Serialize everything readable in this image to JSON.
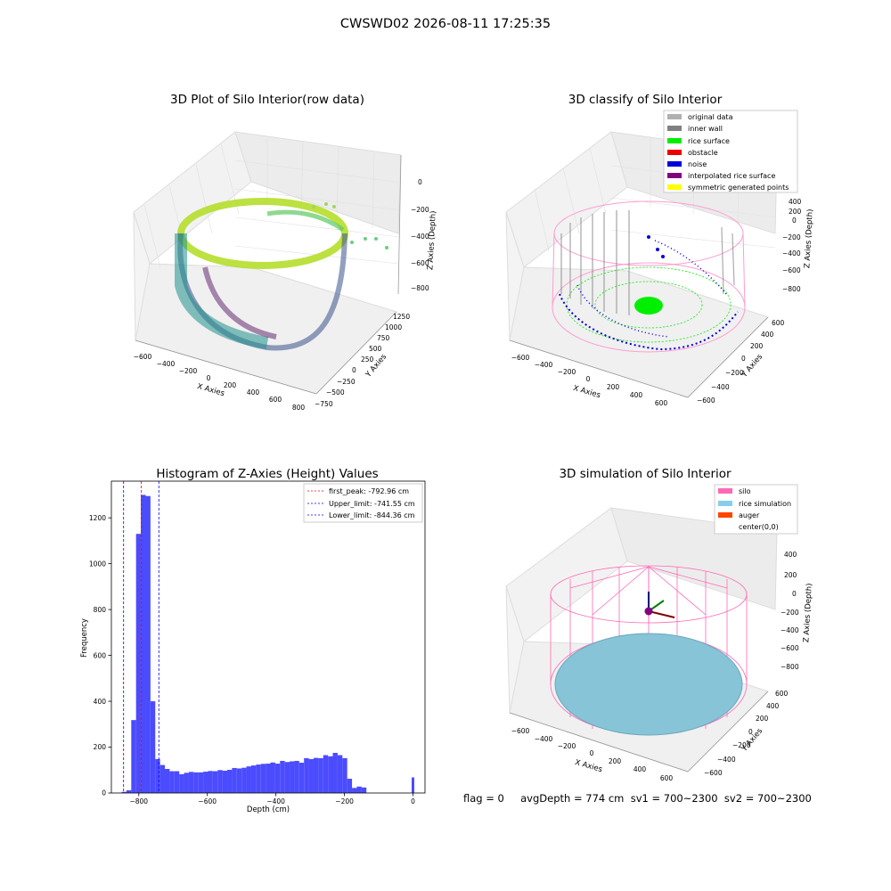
{
  "suptitle": "CWSWD02 2026-08-11 17:25:35",
  "panels": {
    "raw": {
      "title": "3D Plot of Silo Interior(row data)",
      "xlabel": "X Axies",
      "ylabel": "Y Axies",
      "zlabel": "Z Axies (Depth)",
      "x_ticks": [
        "−600",
        "−400",
        "−200",
        "0",
        "200",
        "400",
        "600",
        "800"
      ],
      "y_ticks": [
        "−750",
        "−500",
        "−250",
        "0",
        "250",
        "500",
        "750",
        "1000",
        "1250"
      ],
      "z_ticks": [
        "0",
        "−200",
        "−400",
        "−600",
        "−800"
      ]
    },
    "classify": {
      "title": "3D classify of Silo Interior",
      "xlabel": "X Axies",
      "ylabel": "Y Axies",
      "zlabel": "Z Axies (Depth)",
      "x_ticks": [
        "−600",
        "−400",
        "−200",
        "0",
        "200",
        "400",
        "600"
      ],
      "y_ticks": [
        "−600",
        "−400",
        "−200",
        "0",
        "200",
        "400",
        "600"
      ],
      "z_ticks": [
        "400",
        "200",
        "0",
        "−200",
        "−400",
        "−600",
        "−800"
      ],
      "legend": [
        {
          "label": "original data",
          "color": "#b0b0b0"
        },
        {
          "label": "inner wall",
          "color": "#808080"
        },
        {
          "label": "rice surface",
          "color": "#00ee00"
        },
        {
          "label": "obstacle",
          "color": "#ee0000"
        },
        {
          "label": "noise",
          "color": "#0000dd"
        },
        {
          "label": "interpolated rice surface",
          "color": "#800080"
        },
        {
          "label": "symmetric generated points",
          "color": "#ffff00"
        }
      ]
    },
    "simulation": {
      "title": "3D simulation of Silo Interior",
      "xlabel": "X Axies",
      "ylabel": "Y Axies",
      "zlabel": "Z Axies (Depth)",
      "x_ticks": [
        "−600",
        "−400",
        "−200",
        "0",
        "200",
        "400",
        "600"
      ],
      "y_ticks": [
        "−600",
        "−400",
        "−200",
        "0",
        "200",
        "400",
        "600"
      ],
      "z_ticks": [
        "400",
        "200",
        "0",
        "−200",
        "−400",
        "−600",
        "−800"
      ],
      "legend": [
        {
          "label": "silo",
          "color": "#ff69b4"
        },
        {
          "label": "rice simulation",
          "color": "#87ceeb"
        },
        {
          "label": "auger",
          "color": "#ff4500"
        },
        {
          "label": "center(0,0)",
          "color": "#ffffff"
        }
      ]
    }
  },
  "chart_data": {
    "type": "bar",
    "title": "Histogram of Z-Axies (Height) Values",
    "xlabel": "Depth (cm)",
    "ylabel": "Frequency",
    "xlim": [
      -880,
      35
    ],
    "ylim": [
      0,
      1360
    ],
    "x_ticks": [
      -800,
      -600,
      -400,
      -200,
      0
    ],
    "x_tick_labels": [
      "−800",
      "−600",
      "−400",
      "−200",
      "0"
    ],
    "y_ticks": [
      0,
      200,
      400,
      600,
      800,
      1000,
      1200
    ],
    "bin_width": 14,
    "bin_starts": [
      -850,
      -836,
      -822,
      -808,
      -794,
      -780,
      -766,
      -752,
      -738,
      -724,
      -710,
      -696,
      -682,
      -668,
      -654,
      -640,
      -626,
      -612,
      -598,
      -584,
      -570,
      -556,
      -542,
      -528,
      -514,
      -500,
      -486,
      -472,
      -458,
      -444,
      -430,
      -416,
      -402,
      -388,
      -374,
      -360,
      -346,
      -332,
      -318,
      -304,
      -290,
      -276,
      -262,
      -248,
      -234,
      -220,
      -206,
      -192,
      -178,
      -164,
      -150,
      -136,
      -122,
      -108,
      -94,
      -80,
      -66,
      -52,
      -38,
      -24,
      -10
    ],
    "values": [
      5,
      12,
      318,
      1130,
      1300,
      1295,
      400,
      148,
      122,
      105,
      95,
      95,
      82,
      88,
      92,
      90,
      90,
      93,
      96,
      95,
      100,
      97,
      101,
      109,
      107,
      110,
      116,
      120,
      124,
      127,
      128,
      133,
      128,
      140,
      135,
      138,
      140,
      132,
      152,
      148,
      153,
      152,
      165,
      160,
      175,
      165,
      152,
      62,
      22,
      28,
      24,
      0,
      0,
      0,
      0,
      0,
      0,
      0,
      0,
      0,
      0
    ],
    "bar_color": "#4b4bff",
    "vlines": [
      {
        "x": -792.96,
        "color": "#ff0000",
        "label": "first_peak: -792.96 cm"
      },
      {
        "x": -741.55,
        "color": "#0000ff",
        "label": "Upper_limit: -741.55 cm"
      },
      {
        "x": -844.36,
        "color": "#0000ff",
        "label": "Lower_limit: -844.36 cm"
      }
    ],
    "legend_position": "top-right",
    "extra_bar": {
      "x": -4,
      "value": 68
    }
  },
  "status_text": "flag = 0     avgDepth = 774 cm  sv1 = 700~2300  sv2 = 700~2300"
}
